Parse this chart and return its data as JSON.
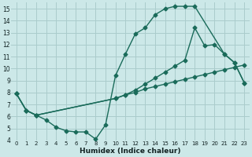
{
  "xlabel": "Humidex (Indice chaleur)",
  "bg_color": "#cce8e8",
  "grid_color": "#aacccc",
  "line_color": "#1a6b5a",
  "xlim": [
    -0.5,
    23.5
  ],
  "ylim": [
    4,
    15.5
  ],
  "yticks": [
    4,
    5,
    6,
    7,
    8,
    9,
    10,
    11,
    12,
    13,
    14,
    15
  ],
  "xticks": [
    0,
    1,
    2,
    3,
    4,
    5,
    6,
    7,
    8,
    9,
    10,
    11,
    12,
    13,
    14,
    15,
    16,
    17,
    18,
    19,
    20,
    21,
    22,
    23
  ],
  "line1_x": [
    0,
    1,
    2,
    3,
    4,
    5,
    6,
    7,
    8,
    9,
    10,
    11,
    12,
    13,
    14,
    15,
    16,
    17,
    18,
    21,
    22,
    23
  ],
  "line1_y": [
    7.9,
    6.5,
    6.1,
    5.7,
    5.1,
    4.8,
    4.7,
    4.7,
    4.1,
    5.3,
    9.4,
    11.2,
    12.9,
    13.4,
    14.5,
    15.0,
    15.2,
    15.2,
    15.2,
    11.2,
    10.5,
    8.8
  ],
  "line2_x": [
    0,
    1,
    2,
    10,
    11,
    12,
    13,
    14,
    15,
    16,
    17,
    18,
    19,
    20,
    21,
    22,
    23
  ],
  "line2_y": [
    7.9,
    6.5,
    6.1,
    7.5,
    7.8,
    8.0,
    8.3,
    8.5,
    8.7,
    8.9,
    9.1,
    9.3,
    9.5,
    9.7,
    9.9,
    10.1,
    10.3
  ],
  "line3_x": [
    0,
    1,
    2,
    10,
    11,
    12,
    13,
    14,
    15,
    16,
    17,
    18,
    19,
    20,
    21,
    22,
    23
  ],
  "line3_y": [
    7.9,
    6.5,
    6.1,
    7.5,
    7.8,
    8.2,
    8.7,
    9.2,
    9.7,
    10.2,
    10.7,
    13.4,
    11.9,
    12.0,
    11.2,
    10.5,
    8.8
  ]
}
